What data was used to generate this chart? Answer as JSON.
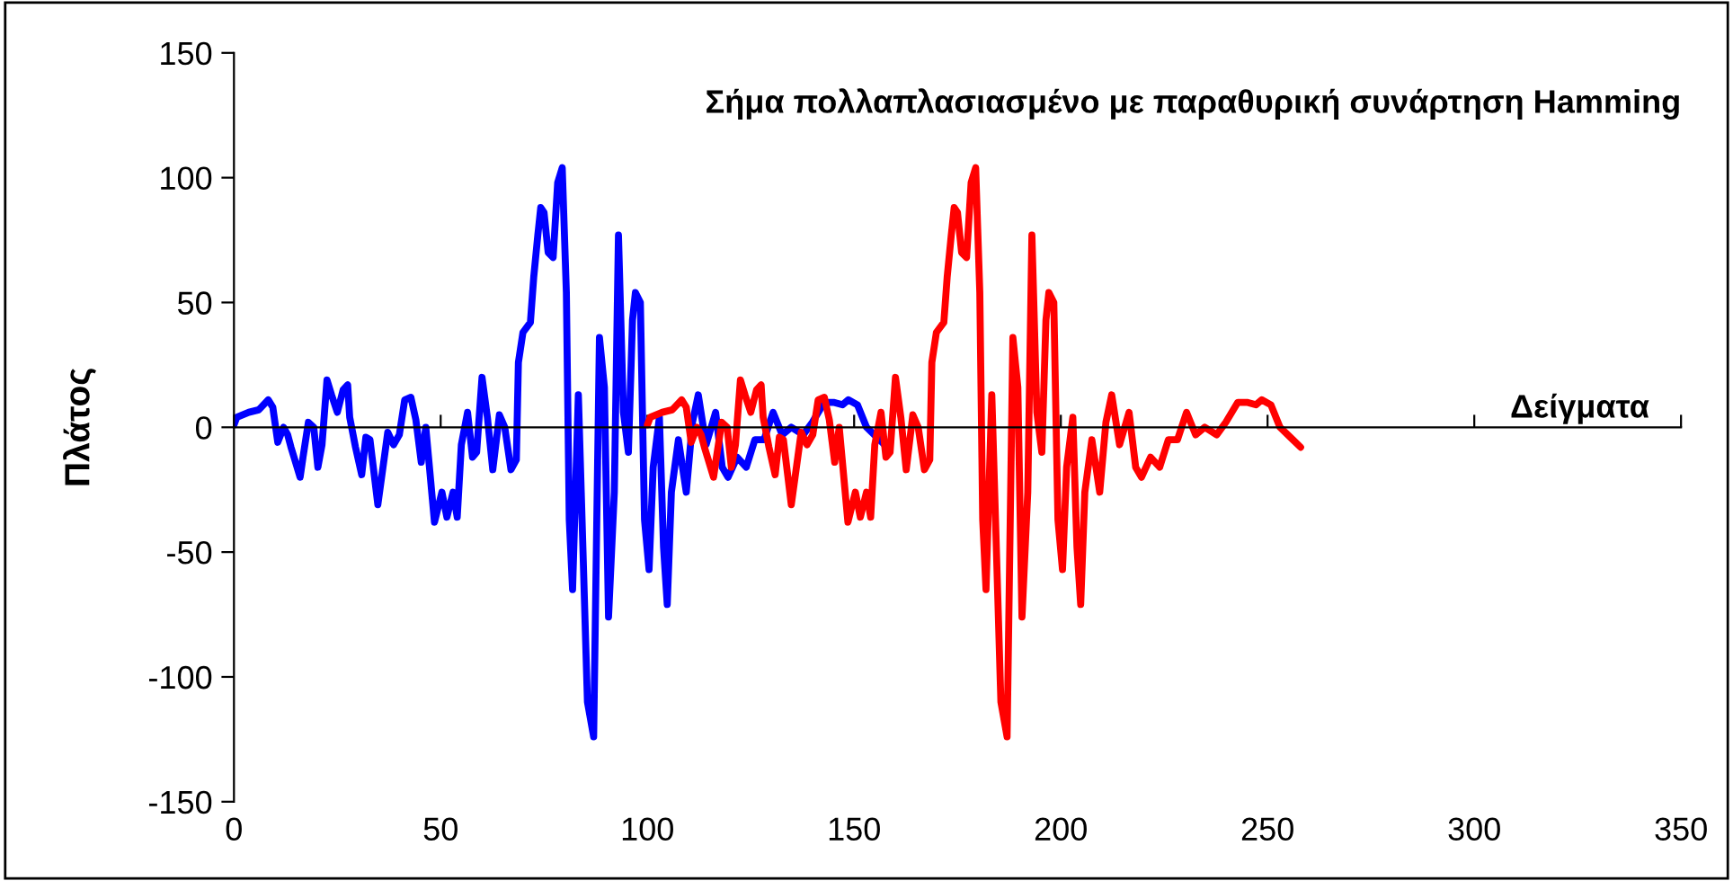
{
  "chart_data": {
    "type": "line",
    "title": "Σήμα πολλαπλασιασμένο με παραθυρική συνάρτηση Hamming",
    "xlabel": "Δείγματα",
    "ylabel": "Πλάτος",
    "xlim": [
      0,
      350
    ],
    "ylim": [
      -150,
      150
    ],
    "xticks": [
      0,
      50,
      100,
      150,
      200,
      250,
      300,
      350
    ],
    "yticks": [
      -150,
      -100,
      -50,
      0,
      50,
      100,
      150
    ],
    "series": [
      {
        "color": "#0000ff",
        "x": [
          0,
          0.7,
          3.6,
          6,
          8.3,
          9.4,
          10.6,
          12,
          13,
          13.8,
          16,
          16.7,
          18,
          19.3,
          20.3,
          21.3,
          22.5,
          23.6,
          25,
          26.4,
          27.5,
          28,
          29.4,
          30.9,
          31.9,
          32.9,
          34.8,
          35.8,
          37.2,
          38.6,
          40,
          41.3,
          42.8,
          44,
          45.3,
          46.4,
          48.5,
          50.3,
          51.5,
          53,
          54,
          55,
          56.5,
          57.7,
          58.7,
          60,
          61.3,
          62.6,
          64.2,
          65.5,
          67,
          68.3,
          68.8,
          69.9,
          71.7,
          72.5,
          73.5,
          74.2,
          75,
          76,
          77.2,
          78.3,
          79.4,
          80.4,
          81.1,
          81.9,
          83.3,
          84,
          85.5,
          87,
          88.4,
          89.6,
          90.6,
          92,
          93,
          94.2,
          95.4,
          96.4,
          97.1,
          98.3,
          99.3,
          100.4,
          101.4,
          102.9,
          103.9,
          104.8,
          105.8,
          107.5,
          109.4,
          110.9,
          112.3,
          114.2,
          116.5,
          118.1,
          119.5,
          121.7,
          123.9,
          126,
          128.2,
          130.4,
          132.6,
          134.8,
          137.7,
          139.9,
          142.8,
          145,
          147.2,
          148.6,
          150.8,
          153,
          155.5,
          158
        ],
        "values": [
          1,
          4,
          6,
          7,
          11,
          8,
          -6,
          0,
          -3,
          -8,
          -20,
          -12,
          2,
          0,
          -16,
          -7,
          19,
          13,
          6,
          15,
          17,
          4,
          -8,
          -19,
          -4,
          -5,
          -31,
          -19,
          -2,
          -7,
          -3,
          11,
          12,
          3,
          -14,
          0,
          -38,
          -26,
          -36,
          -26,
          -36,
          -7,
          6,
          -12,
          -10,
          20,
          4,
          -17,
          5,
          0,
          -17,
          -13,
          26,
          38,
          42,
          60,
          77,
          88,
          86,
          70,
          68,
          98,
          104,
          54,
          -37,
          -65,
          13,
          -26,
          -110,
          -124,
          36,
          16,
          -76,
          -26,
          77,
          6,
          -10,
          43,
          54,
          50,
          -37,
          -57,
          -16,
          4,
          -48,
          -71,
          -26,
          -5,
          -26,
          2,
          13,
          -7,
          6,
          -16,
          -20,
          -12,
          -16,
          -5,
          -5,
          6,
          -3,
          0,
          -3,
          2,
          10,
          10,
          9,
          11,
          9,
          0,
          -4,
          -8
        ]
      },
      {
        "color": "#ff0000",
        "x": [
          100,
          100.7,
          103.6,
          106,
          108.3,
          109.4,
          110.6,
          112,
          113,
          113.8,
          116,
          116.7,
          118,
          119.3,
          120.3,
          121.3,
          122.5,
          123.6,
          125,
          126.4,
          127.5,
          128,
          129.4,
          130.9,
          131.9,
          132.9,
          134.8,
          135.8,
          137.2,
          138.6,
          140,
          141.3,
          142.8,
          144,
          145.3,
          146.4,
          148.5,
          150.3,
          151.5,
          153,
          154,
          155,
          156.5,
          157.7,
          158.7,
          160,
          161.3,
          162.6,
          164.2,
          165.5,
          167,
          168.3,
          168.8,
          169.9,
          171.7,
          172.5,
          173.5,
          174.2,
          175,
          176,
          177.2,
          178.3,
          179.4,
          180.4,
          181.1,
          181.9,
          183.3,
          184,
          185.5,
          187,
          188.4,
          189.6,
          190.6,
          192,
          193,
          194.2,
          195.4,
          196.4,
          197.1,
          198.3,
          199.3,
          200.4,
          201.4,
          202.9,
          203.9,
          204.8,
          205.8,
          207.5,
          209.4,
          210.9,
          212.3,
          214.2,
          216.5,
          218.1,
          219.5,
          221.7,
          223.9,
          226,
          228.2,
          230.4,
          232.6,
          234.8,
          237.7,
          239.9,
          242.8,
          245,
          247.2,
          248.6,
          250.8,
          253,
          255.5,
          258
        ],
        "values": [
          1,
          4,
          6,
          7,
          11,
          8,
          -6,
          0,
          -3,
          -8,
          -20,
          -12,
          2,
          0,
          -16,
          -7,
          19,
          13,
          6,
          15,
          17,
          4,
          -8,
          -19,
          -4,
          -5,
          -31,
          -19,
          -2,
          -7,
          -3,
          11,
          12,
          3,
          -14,
          0,
          -38,
          -26,
          -36,
          -26,
          -36,
          -7,
          6,
          -12,
          -10,
          20,
          4,
          -17,
          5,
          0,
          -17,
          -13,
          26,
          38,
          42,
          60,
          77,
          88,
          86,
          70,
          68,
          98,
          104,
          54,
          -37,
          -65,
          13,
          -26,
          -110,
          -124,
          36,
          16,
          -76,
          -26,
          77,
          6,
          -10,
          43,
          54,
          50,
          -37,
          -57,
          -16,
          4,
          -48,
          -71,
          -26,
          -5,
          -26,
          2,
          13,
          -7,
          6,
          -16,
          -20,
          -12,
          -16,
          -5,
          -5,
          6,
          -3,
          0,
          -3,
          2,
          10,
          10,
          9,
          11,
          9,
          0,
          -4,
          -8
        ]
      }
    ]
  }
}
